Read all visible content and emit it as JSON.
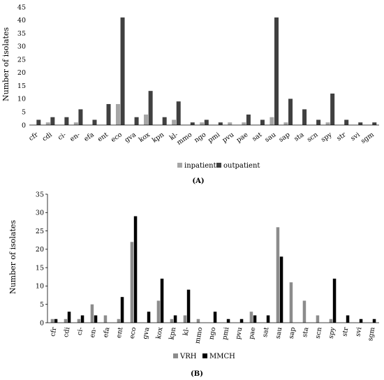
{
  "chart_data": [
    {
      "type": "bar",
      "panel_label": "(A)",
      "ylabel": "Number of isolates",
      "ylim": [
        0,
        45
      ],
      "yticks": [
        0,
        5,
        10,
        15,
        20,
        25,
        30,
        35,
        40,
        45
      ],
      "grid": false,
      "legend_position": "bottom",
      "categories": [
        "cfr",
        "cdi",
        "ci-",
        "en-",
        "efa",
        "ent",
        "eco",
        "gva",
        "kox",
        "kpn",
        "kl-",
        "mmo",
        "ngo",
        "pmi",
        "pvu",
        "pae",
        "sat",
        "sau",
        "sap",
        "sta",
        "scn",
        "spy",
        "str",
        "svi",
        "sgm"
      ],
      "series": [
        {
          "name": "inpatient",
          "color": "#a6a6a6",
          "values": [
            0,
            1,
            0,
            1,
            0,
            0,
            8,
            0,
            4,
            0,
            2,
            0,
            1,
            0,
            1,
            1,
            0,
            3,
            1,
            0,
            0,
            1,
            0,
            0,
            0
          ]
        },
        {
          "name": "outpatient",
          "color": "#404040",
          "values": [
            2,
            3,
            3,
            6,
            2,
            8,
            41,
            3,
            13,
            3,
            9,
            1,
            2,
            1,
            0,
            4,
            2,
            41,
            10,
            6,
            2,
            12,
            2,
            1,
            1
          ]
        }
      ]
    },
    {
      "type": "bar",
      "panel_label": "(B)",
      "ylabel": "Number of isolates",
      "ylim": [
        0,
        35
      ],
      "yticks": [
        0,
        5,
        10,
        15,
        20,
        25,
        30,
        35
      ],
      "grid": false,
      "legend_position": "bottom",
      "categories": [
        "cfr",
        "cdi",
        "ci-",
        "en-",
        "efa",
        "ent",
        "eco",
        "gva",
        "kox",
        "kpn",
        "kl-",
        "mmo",
        "ngo",
        "pmi",
        "pvu",
        "pae",
        "sat",
        "sau",
        "sap",
        "sta",
        "scn",
        "spy",
        "str",
        "svi",
        "sgm"
      ],
      "series": [
        {
          "name": "VRH",
          "color": "#8c8c8c",
          "values": [
            1,
            1,
            1,
            5,
            2,
            1,
            22,
            0,
            6,
            1,
            2,
            1,
            0,
            0,
            0,
            3,
            0,
            26,
            11,
            6,
            2,
            1,
            0,
            0,
            0
          ]
        },
        {
          "name": "MMCH",
          "color": "#000000",
          "values": [
            1,
            3,
            2,
            2,
            0,
            7,
            29,
            3,
            12,
            2,
            9,
            0,
            3,
            1,
            1,
            2,
            2,
            18,
            0,
            0,
            0,
            12,
            2,
            1,
            1
          ]
        }
      ]
    }
  ]
}
